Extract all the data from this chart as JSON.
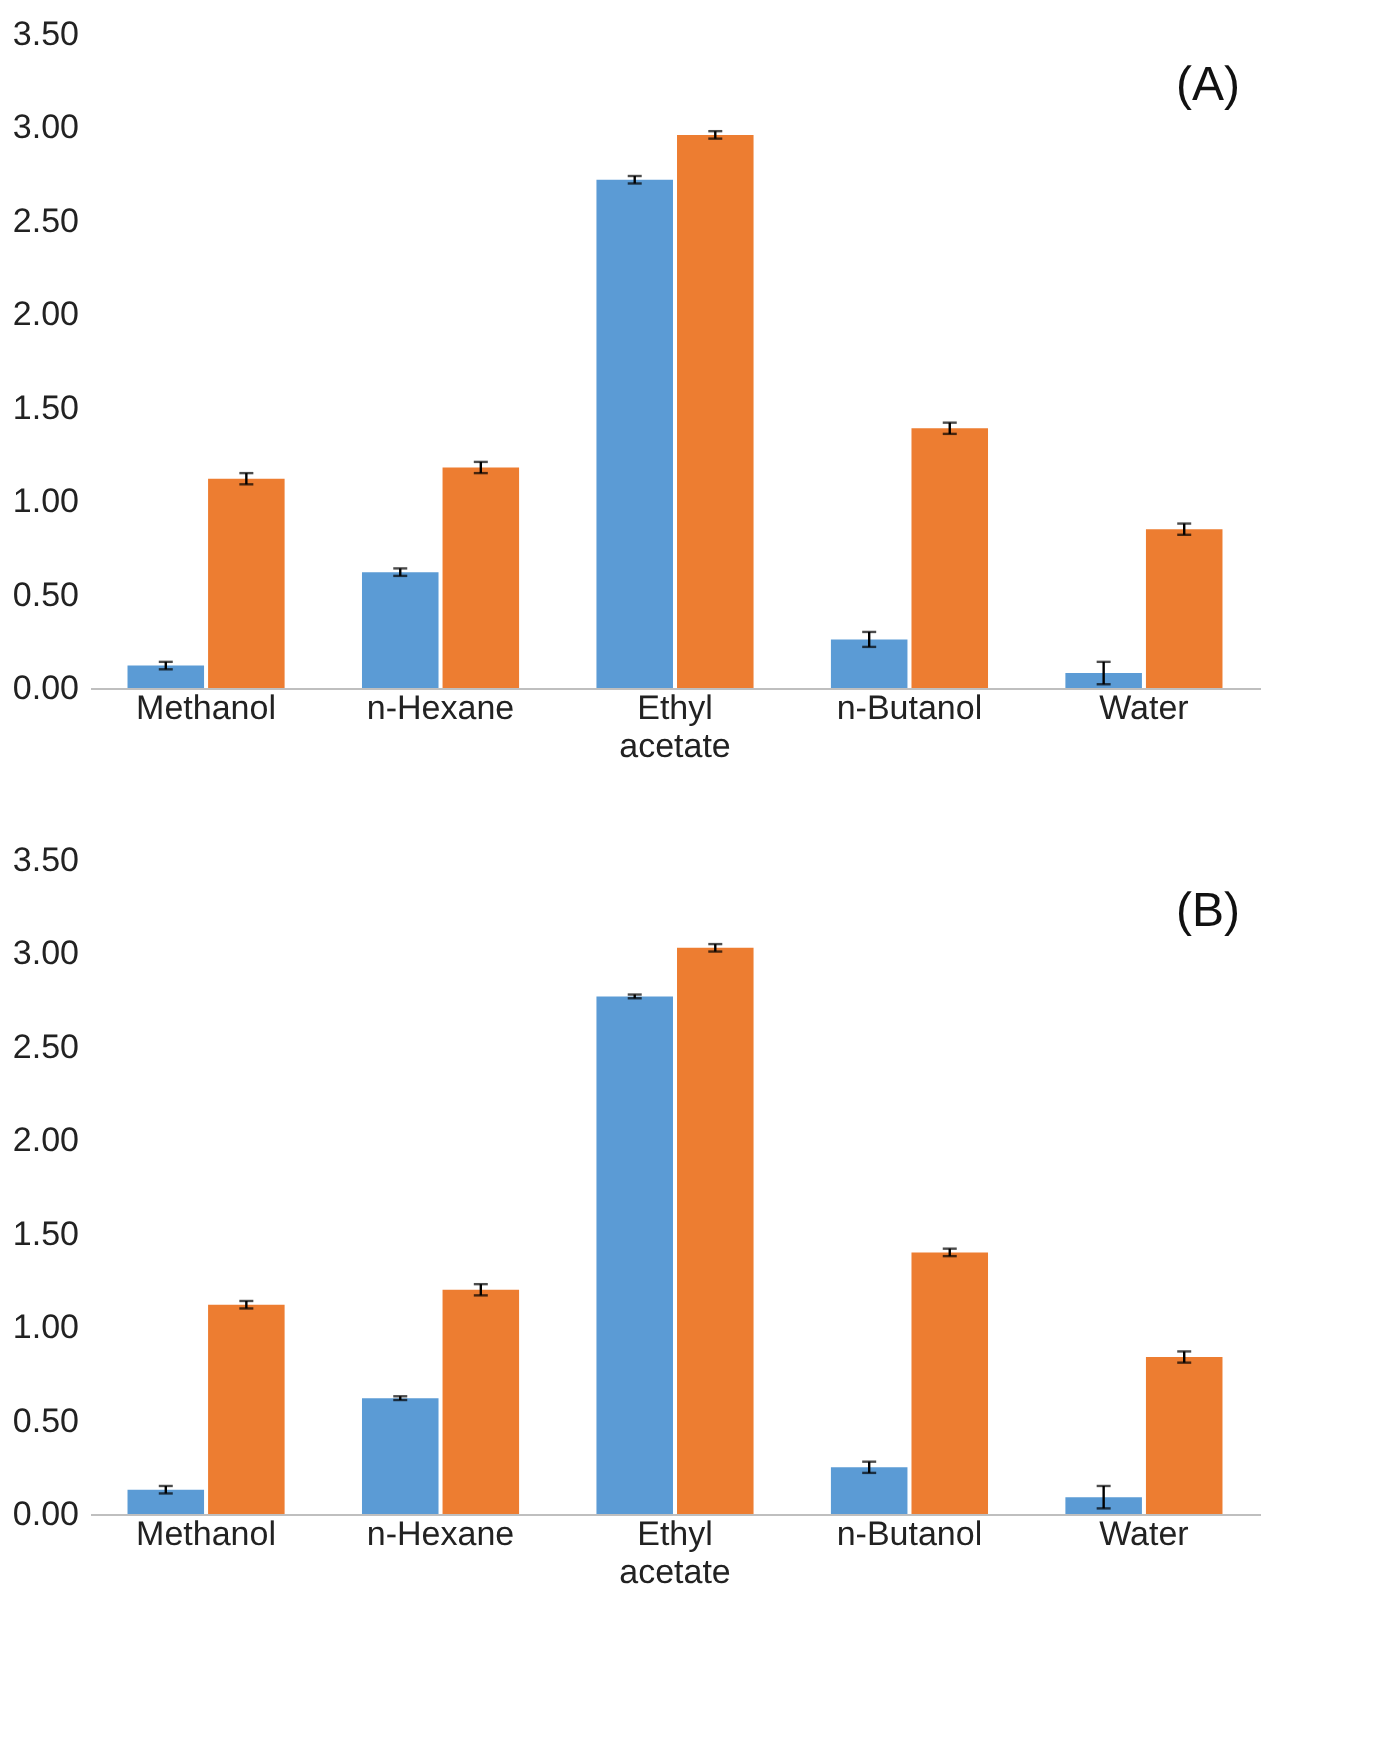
{
  "chart_data": [
    {
      "type": "bar",
      "categories": [
        "Methanol",
        "n-Hexane",
        "Ethyl acetate",
        "n-Butanol",
        "Water"
      ],
      "series": [
        {
          "color": "#5b9bd5",
          "values": [
            0.12,
            0.62,
            2.72,
            0.26,
            0.08
          ],
          "errors": [
            0.02,
            0.02,
            0.02,
            0.04,
            0.06
          ]
        },
        {
          "color": "#ed7d31",
          "values": [
            1.12,
            1.18,
            2.96,
            1.39,
            0.85
          ],
          "errors": [
            0.03,
            0.03,
            0.02,
            0.03,
            0.03
          ]
        }
      ],
      "ylim": [
        0,
        3.5
      ],
      "yticks": [
        {
          "value": 0,
          "label": "0.00"
        },
        {
          "value": 0.5,
          "label": "0.50"
        },
        {
          "value": 1,
          "label": "1.00"
        },
        {
          "value": 1.5,
          "label": "1.50"
        },
        {
          "value": 2,
          "label": "2.00"
        },
        {
          "value": 2.5,
          "label": "2.50"
        },
        {
          "value": 3,
          "label": "3.00"
        },
        {
          "value": 3.5,
          "label": "3.50"
        }
      ],
      "grid": false,
      "legend": false,
      "annotations": [
        "(A)"
      ]
    },
    {
      "type": "bar",
      "categories": [
        "Methanol",
        "n-Hexane",
        "Ethyl acetate",
        "n-Butanol",
        "Water"
      ],
      "series": [
        {
          "color": "#5b9bd5",
          "values": [
            0.13,
            0.62,
            2.77,
            0.25,
            0.09
          ],
          "errors": [
            0.02,
            0.01,
            0.01,
            0.03,
            0.06
          ]
        },
        {
          "color": "#ed7d31",
          "values": [
            1.12,
            1.2,
            3.03,
            1.4,
            0.84
          ],
          "errors": [
            0.02,
            0.03,
            0.02,
            0.02,
            0.03
          ]
        }
      ],
      "ylim": [
        0,
        3.5
      ],
      "yticks": [
        {
          "value": 0,
          "label": "0.00"
        },
        {
          "value": 0.5,
          "label": "0.50"
        },
        {
          "value": 1,
          "label": "1.00"
        },
        {
          "value": 1.5,
          "label": "1.50"
        },
        {
          "value": 2,
          "label": "2.00"
        },
        {
          "value": 2.5,
          "label": "2.50"
        },
        {
          "value": 3,
          "label": "3.00"
        },
        {
          "value": 3.5,
          "label": "3.50"
        }
      ],
      "grid": false,
      "legend": false,
      "annotations": [
        "(B)"
      ]
    }
  ]
}
